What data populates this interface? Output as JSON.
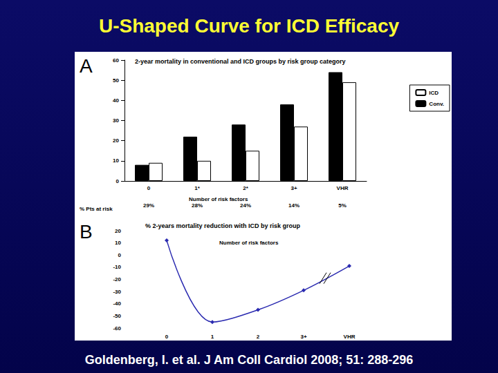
{
  "header": {
    "title": "U-Shaped Curve for ICD Efficacy"
  },
  "footer": {
    "citation": "Goldenberg, I. et al. J Am Coll Cardiol 2008; 51: 288-296"
  },
  "chart_data": [
    {
      "panel": "A",
      "type": "bar",
      "title": "2-year mortality in conventional and ICD groups by risk group category",
      "x_label": "Number of risk factors",
      "categories": [
        "0",
        "1*",
        "2*",
        "3+",
        "VHR"
      ],
      "series": [
        {
          "name": "Conv.",
          "color": "#000000",
          "values": [
            8,
            22,
            28,
            38,
            54
          ]
        },
        {
          "name": "ICD",
          "color": "#ffffff",
          "values": [
            9,
            10,
            15,
            27,
            49
          ]
        }
      ],
      "ylim": [
        0,
        60
      ],
      "yticks": [
        0,
        10,
        20,
        30,
        40,
        50,
        60
      ],
      "grid": false,
      "legend": "top-right",
      "pts_at_risk": {
        "label": "% Pts at risk",
        "values": [
          "29%",
          "28%",
          "24%",
          "14%",
          "5%"
        ]
      }
    },
    {
      "panel": "B",
      "type": "line",
      "title": "% 2-years mortality reduction with ICD by risk group",
      "x_label": "Number of risk factors",
      "categories": [
        "0",
        "1",
        "2",
        "3+",
        "VHR"
      ],
      "values": [
        12,
        -55,
        -45,
        -29,
        -9
      ],
      "color": "#2a2ab0",
      "marker": "diamond",
      "line_style": "solid",
      "ylim": [
        -60,
        20
      ],
      "yticks": [
        -60,
        -50,
        -40,
        -30,
        -20,
        -10,
        0,
        10,
        20
      ],
      "grid": false
    }
  ]
}
